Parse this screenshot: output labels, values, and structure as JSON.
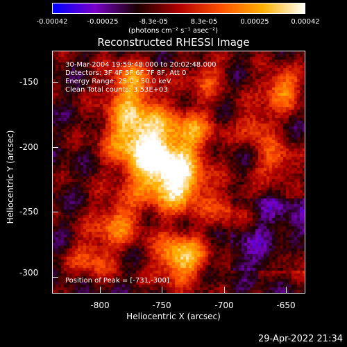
{
  "colorbar": {
    "tick_labels": [
      "-0.00042",
      "-0.00025",
      "-8.3e-05",
      "8.3e-05",
      "0.00025",
      "0.00042"
    ],
    "units": "(photons cm⁻² s⁻¹ asec⁻²)",
    "colors": [
      "#0000ff",
      "#7a00c8",
      "#1a0000",
      "#b00000",
      "#ff5000",
      "#ffb000",
      "#ffffff"
    ]
  },
  "title": "Reconstructed RHESSI Image",
  "overlay": {
    "time_range": "30-Mar-2004 19:59:48.000 to 20:02:48.000",
    "detectors": "Detectors: 3F 4F 5F 6F 7F 8F, Att 0",
    "energy_range": "Energy Range: 25.0 - 50.0 keV",
    "clean_counts": "Clean     Total counts: 3.53E+03",
    "peak_position": "Position of Peak = [-731,-300]"
  },
  "axes": {
    "xlabel": "Heliocentric X (arcsec)",
    "ylabel": "Heliocentric Y (arcsec)",
    "x_ticks": [
      "-800",
      "-750",
      "-700",
      "-650"
    ],
    "y_ticks": [
      "-150",
      "-200",
      "-250",
      "-300"
    ],
    "xlim": [
      -835,
      -632
    ],
    "ylim": [
      -315,
      -128
    ]
  },
  "timestamp": "29-Apr-2022 21:34"
}
